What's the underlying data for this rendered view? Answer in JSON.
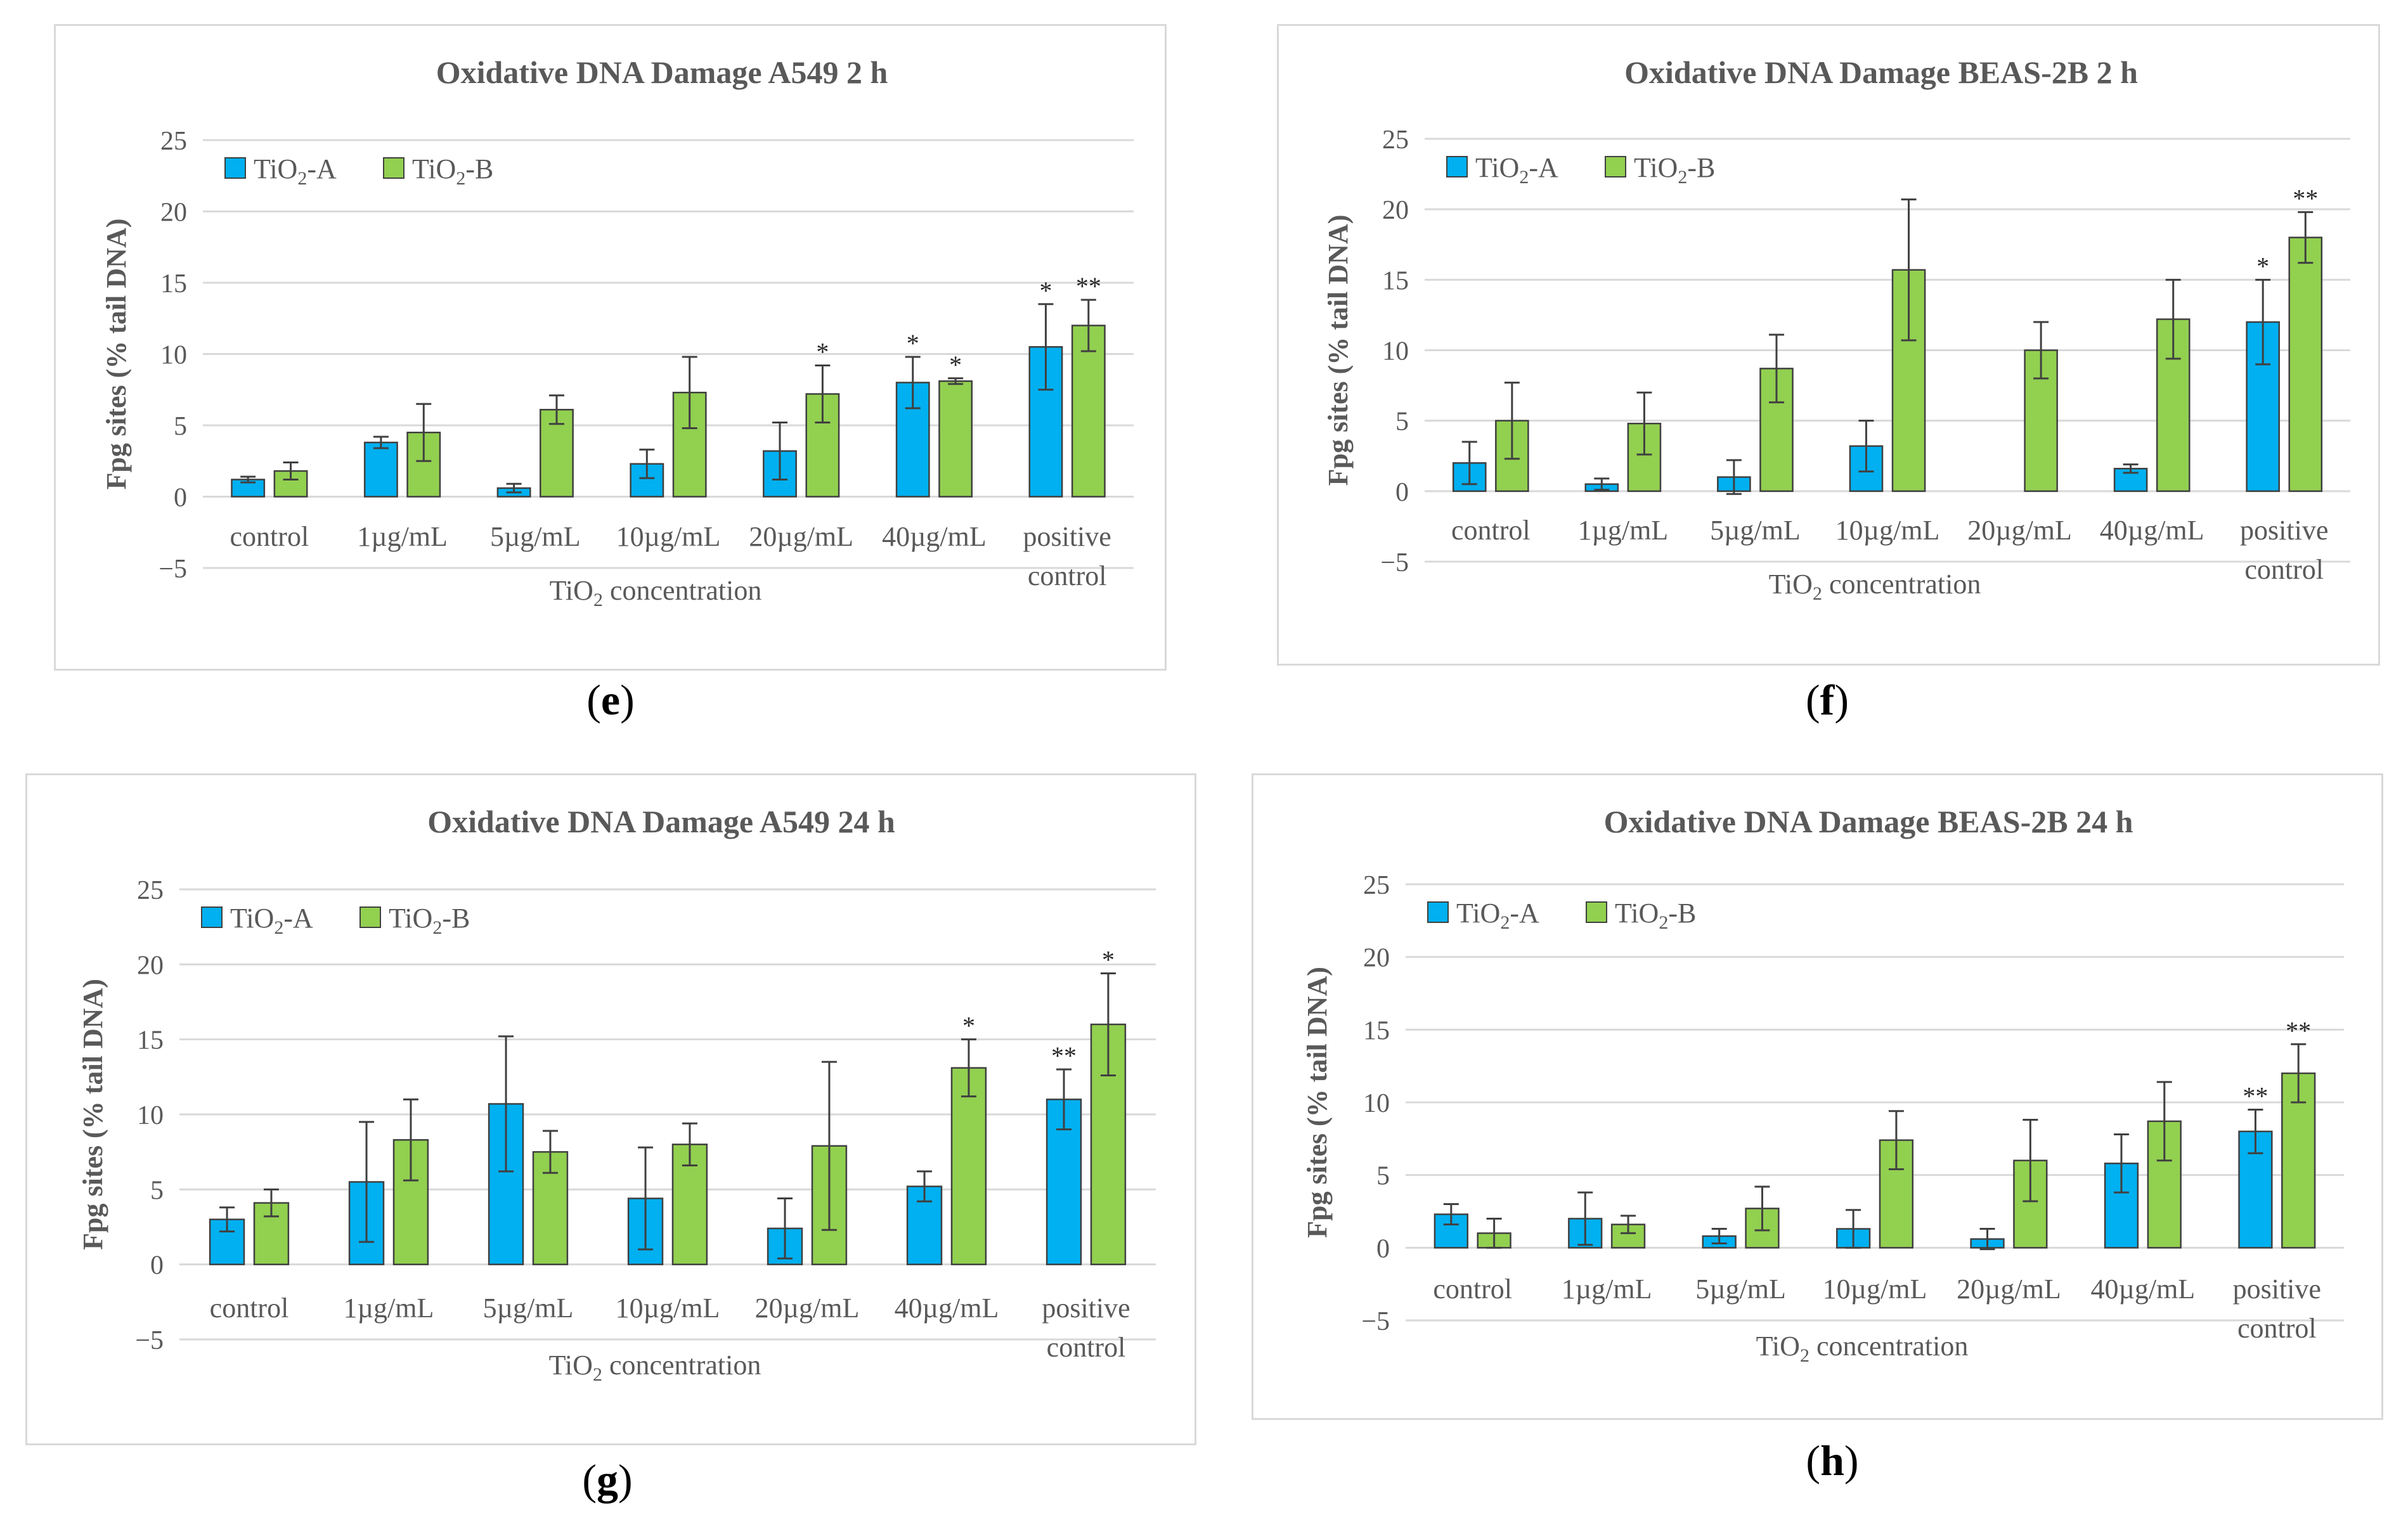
{
  "colors": {
    "tio2_a": "#00B0F0",
    "tio2_b": "#92D050",
    "grid": "#d9d9d9",
    "text": "#595959",
    "border": "#d9d9d9",
    "error": "#404040"
  },
  "chart_data": [
    {
      "type": "bar",
      "panel_label": "e",
      "title": "Oxidative DNA Damage A549 2 h",
      "ylabel": "Fpg sites (% tail DNA)",
      "xlabel_prefix": "TiO",
      "xlabel_sub": "2",
      "xlabel_suffix": " concentration",
      "ylim": [
        -5,
        25
      ],
      "yticks": [
        25,
        20,
        15,
        10,
        5,
        0,
        -5
      ],
      "ytick_labels": [
        "25",
        "20",
        "15",
        "10",
        "5",
        "0",
        "−5"
      ],
      "categories": [
        [
          "control"
        ],
        [
          "1µg/mL"
        ],
        [
          "5µg/mL"
        ],
        [
          "10µg/mL"
        ],
        [
          "20µg/mL"
        ],
        [
          "40µg/mL"
        ],
        [
          "positive",
          "control"
        ]
      ],
      "legend": "top-left",
      "series": [
        {
          "name": "TiO2-A",
          "label_main": "TiO",
          "label_sub": "2",
          "label_suffix": "-A",
          "values": [
            1.2,
            3.8,
            0.6,
            2.3,
            3.2,
            8.0,
            10.5
          ],
          "errors": [
            0.2,
            0.4,
            0.3,
            1.0,
            2.0,
            1.8,
            3.0
          ],
          "sig": [
            "",
            "",
            "",
            "",
            "",
            "*",
            "*"
          ]
        },
        {
          "name": "TiO2-B",
          "label_main": "TiO",
          "label_sub": "2",
          "label_suffix": "-B",
          "values": [
            1.8,
            4.5,
            6.1,
            7.3,
            7.2,
            8.1,
            12.0
          ],
          "errors": [
            0.6,
            2.0,
            1.0,
            2.5,
            2.0,
            0.2,
            1.8
          ],
          "sig": [
            "",
            "",
            "",
            "",
            "*",
            "*",
            "**"
          ]
        }
      ]
    },
    {
      "type": "bar",
      "panel_label": "f",
      "title": "Oxidative DNA Damage BEAS-2B 2 h",
      "ylabel": "Fpg sites (% tail DNA)",
      "xlabel_prefix": "TiO",
      "xlabel_sub": "2",
      "xlabel_suffix": " concentration",
      "ylim": [
        -5,
        25
      ],
      "yticks": [
        25,
        20,
        15,
        10,
        5,
        0,
        -5
      ],
      "ytick_labels": [
        "25",
        "20",
        "15",
        "10",
        "5",
        "0",
        "−5"
      ],
      "categories": [
        [
          "control"
        ],
        [
          "1µg/mL"
        ],
        [
          "5µg/mL"
        ],
        [
          "10µg/mL"
        ],
        [
          "20µg/mL"
        ],
        [
          "40µg/mL"
        ],
        [
          "positive",
          "control"
        ]
      ],
      "legend": "top-left",
      "series": [
        {
          "name": "TiO2-A",
          "label_main": "TiO",
          "label_sub": "2",
          "label_suffix": "-A",
          "values": [
            2.0,
            0.5,
            1.0,
            3.2,
            0.0,
            1.6,
            12.0
          ],
          "errors": [
            1.5,
            0.4,
            1.2,
            1.8,
            0.0,
            0.3,
            3.0
          ],
          "sig": [
            "",
            "",
            "",
            "",
            "",
            "",
            "*"
          ]
        },
        {
          "name": "TiO2-B",
          "label_main": "TiO",
          "label_sub": "2",
          "label_suffix": "-B",
          "values": [
            5.0,
            4.8,
            8.7,
            15.7,
            10.0,
            12.2,
            18.0
          ],
          "errors": [
            2.7,
            2.2,
            2.4,
            5.0,
            2.0,
            2.8,
            1.8
          ],
          "sig": [
            "",
            "",
            "",
            "",
            "",
            "",
            "**"
          ]
        }
      ]
    },
    {
      "type": "bar",
      "panel_label": "g",
      "title": "Oxidative DNA Damage A549 24 h",
      "ylabel": "Fpg sites (% tail DNA)",
      "xlabel_prefix": "TiO",
      "xlabel_sub": "2",
      "xlabel_suffix": " concentration",
      "ylim": [
        -5,
        25
      ],
      "yticks": [
        25,
        20,
        15,
        10,
        5,
        0,
        -5
      ],
      "ytick_labels": [
        "25",
        "20",
        "15",
        "10",
        "5",
        "0",
        "−5"
      ],
      "categories": [
        [
          "control"
        ],
        [
          "1µg/mL"
        ],
        [
          "5µg/mL"
        ],
        [
          "10µg/mL"
        ],
        [
          "20µg/mL"
        ],
        [
          "40µg/mL"
        ],
        [
          "positive",
          "control"
        ]
      ],
      "legend": "top-left",
      "series": [
        {
          "name": "TiO2-A",
          "label_main": "TiO",
          "label_sub": "2",
          "label_suffix": "-A",
          "values": [
            3.0,
            5.5,
            10.7,
            4.4,
            2.4,
            5.2,
            11.0
          ],
          "errors": [
            0.8,
            4.0,
            4.5,
            3.4,
            2.0,
            1.0,
            2.0
          ],
          "sig": [
            "",
            "",
            "",
            "",
            "",
            "",
            "**"
          ]
        },
        {
          "name": "TiO2-B",
          "label_main": "TiO",
          "label_sub": "2",
          "label_suffix": "-B",
          "values": [
            4.1,
            8.3,
            7.5,
            8.0,
            7.9,
            13.1,
            16.0
          ],
          "errors": [
            0.9,
            2.7,
            1.4,
            1.4,
            5.6,
            1.9,
            3.4
          ],
          "sig": [
            "",
            "",
            "",
            "",
            "",
            "*",
            "*"
          ]
        }
      ]
    },
    {
      "type": "bar",
      "panel_label": "h",
      "title": "Oxidative DNA Damage BEAS-2B 24 h",
      "ylabel": "Fpg sites (% tail DNA)",
      "xlabel_prefix": "TiO",
      "xlabel_sub": "2",
      "xlabel_suffix": " concentration",
      "ylim": [
        -5,
        25
      ],
      "yticks": [
        25,
        20,
        15,
        10,
        5,
        0,
        -5
      ],
      "ytick_labels": [
        "25",
        "20",
        "15",
        "10",
        "5",
        "0",
        "−5"
      ],
      "categories": [
        [
          "control"
        ],
        [
          "1µg/mL"
        ],
        [
          "5µg/mL"
        ],
        [
          "10µg/mL"
        ],
        [
          "20µg/mL"
        ],
        [
          "40µg/mL"
        ],
        [
          "positive",
          "control"
        ]
      ],
      "legend": "top-left",
      "series": [
        {
          "name": "TiO2-A",
          "label_main": "TiO",
          "label_sub": "2",
          "label_suffix": "-A",
          "values": [
            2.3,
            2.0,
            0.8,
            1.3,
            0.6,
            5.8,
            8.0
          ],
          "errors": [
            0.7,
            1.8,
            0.5,
            1.3,
            0.7,
            2.0,
            1.5
          ],
          "sig": [
            "",
            "",
            "",
            "",
            "",
            "",
            "**"
          ]
        },
        {
          "name": "TiO2-B",
          "label_main": "TiO",
          "label_sub": "2",
          "label_suffix": "-B",
          "values": [
            1.0,
            1.6,
            2.7,
            7.4,
            6.0,
            8.7,
            12.0
          ],
          "errors": [
            1.0,
            0.6,
            1.5,
            2.0,
            2.8,
            2.7,
            2.0
          ],
          "sig": [
            "",
            "",
            "",
            "",
            "",
            "",
            "**"
          ]
        }
      ]
    }
  ]
}
